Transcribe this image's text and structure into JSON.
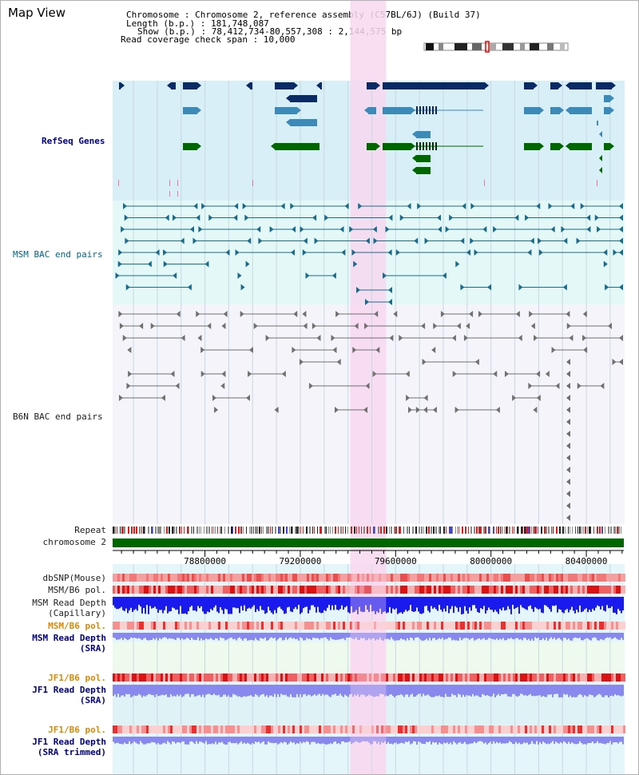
{
  "view": {
    "title": "Map View",
    "info": {
      "chromosome_line": "Chromosome     : Chromosome 2, reference assembly (C57BL/6J) (Build 37)",
      "length_line": "Length (b.p.) : 181,748,087",
      "show_line": "Show (b.p.) : 78,412,734-80,557,308 : 2,144,575 bp",
      "coverage_line": "Read coverage check span : 10,000"
    }
  },
  "axis": {
    "start": 78412734,
    "end": 80557308,
    "highlight": [
      79410000,
      79560000
    ],
    "ticks": [
      "78800000",
      "79200000",
      "79600000",
      "80000000",
      "80400000"
    ]
  },
  "tracks": {
    "refseq": "RefSeq Genes",
    "msm_bac": "MSM BAC end pairs",
    "b6n_bac": "B6N BAC end pairs",
    "repeat": "Repeat",
    "chromosome": "chromosome 2",
    "dbsnp": "dbSNP(Mouse)",
    "msm_b6_pol_1": "MSM/B6 pol.",
    "msm_read_depth_cap": [
      "MSM Read Depth",
      "(Capillary)"
    ],
    "msm_b6_pol_2": "MSM/B6 pol.",
    "msm_read_depth_sra": [
      "MSM Read Depth",
      "(SRA)"
    ],
    "jf1_b6_pol_1": "JF1/B6 pol.",
    "jf1_read_depth_sra": [
      "JF1 Read Depth",
      "(SRA)"
    ],
    "jf1_b6_pol_2": "JF1/B6 pol.",
    "jf1_read_depth_trim": [
      "JF1 Read Depth",
      "(SRA trimmed)"
    ]
  },
  "colors": {
    "refseq_bg": "#d8eff8",
    "msm_bac_bg": "#e4f8f8",
    "b6n_bac_bg": "#f4f4fa",
    "highlight": "#f8d8f0",
    "gene_dark": "#0a2a66",
    "gene_mid": "#3c8ab8",
    "gene_green": "#006600",
    "msm_bac_line": "#1a6a8a",
    "b6n_bac_line": "#707070",
    "chromosome": "#006600",
    "depth_capillary": "#1a1aee",
    "depth_sra": "#8888ee",
    "snp_red": "#ee2222",
    "snp_pink": "#f8a0a0"
  }
}
